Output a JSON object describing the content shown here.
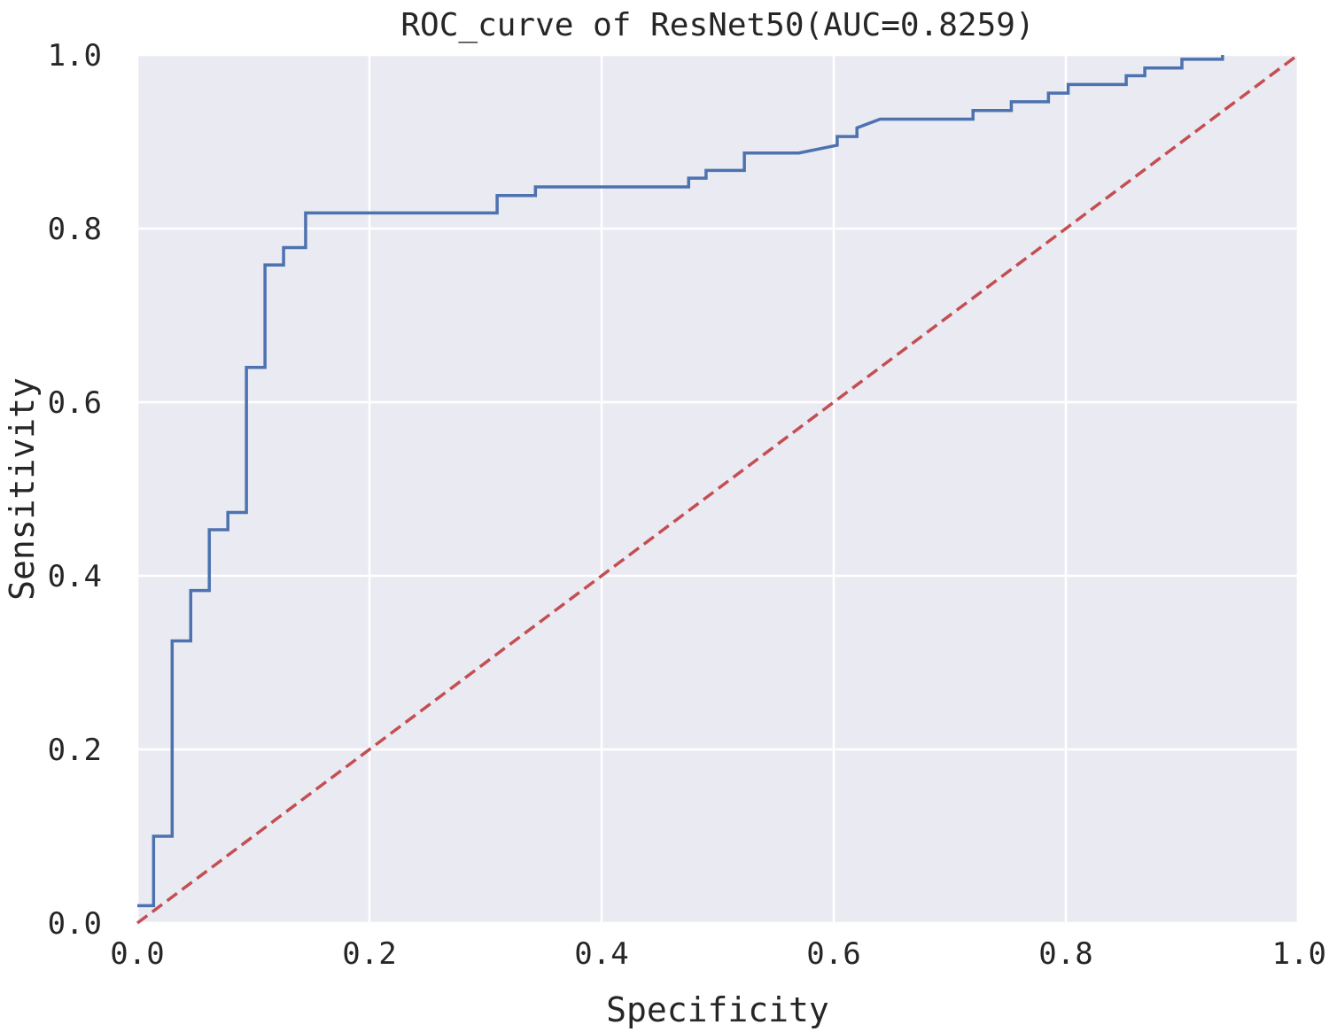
{
  "chart_data": {
    "type": "line",
    "title": "ROC_curve of ResNet50(AUC=0.8259)",
    "xlabel": "Specificity",
    "ylabel": "Sensitivity",
    "xlim": [
      0.0,
      1.0
    ],
    "ylim": [
      0.0,
      1.0
    ],
    "xticks": [
      "0.0",
      "0.2",
      "0.4",
      "0.6",
      "0.8",
      "1.0"
    ],
    "yticks": [
      "0.0",
      "0.2",
      "0.4",
      "0.6",
      "0.8",
      "1.0"
    ],
    "grid": true,
    "colors": {
      "background": "#eaeaf2",
      "grid": "#ffffff",
      "roc": "#4c72b0",
      "reference": "#c44e52",
      "text": "#262626"
    },
    "series": [
      {
        "style": "solid",
        "x": [
          0.0,
          0.014,
          0.014,
          0.03,
          0.03,
          0.046,
          0.046,
          0.062,
          0.062,
          0.062,
          0.078,
          0.078,
          0.094,
          0.094,
          0.11,
          0.11,
          0.126,
          0.126,
          0.145,
          0.145,
          0.31,
          0.31,
          0.343,
          0.343,
          0.475,
          0.475,
          0.49,
          0.49,
          0.523,
          0.523,
          0.57,
          0.603,
          0.603,
          0.62,
          0.62,
          0.62,
          0.64,
          0.72,
          0.72,
          0.753,
          0.753,
          0.785,
          0.785,
          0.802,
          0.802,
          0.852,
          0.852,
          0.868,
          0.868,
          0.9,
          0.9,
          0.935,
          0.935
        ],
        "y": [
          0.02,
          0.02,
          0.1,
          0.1,
          0.325,
          0.325,
          0.383,
          0.383,
          0.44,
          0.453,
          0.453,
          0.473,
          0.473,
          0.64,
          0.64,
          0.758,
          0.758,
          0.778,
          0.778,
          0.818,
          0.818,
          0.838,
          0.838,
          0.848,
          0.848,
          0.858,
          0.858,
          0.867,
          0.867,
          0.887,
          0.887,
          0.896,
          0.906,
          0.906,
          0.906,
          0.916,
          0.926,
          0.926,
          0.936,
          0.936,
          0.946,
          0.946,
          0.956,
          0.956,
          0.966,
          0.966,
          0.976,
          0.976,
          0.985,
          0.985,
          0.995,
          0.995,
          1.0
        ]
      },
      {
        "style": "dashed",
        "x": [
          0.0,
          1.0
        ],
        "y": [
          0.0,
          1.0
        ]
      }
    ]
  }
}
